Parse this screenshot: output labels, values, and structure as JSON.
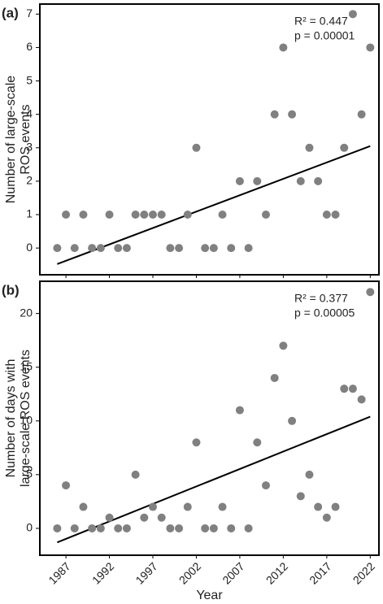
{
  "chart_data": [
    {
      "type": "scatter",
      "panel_label": "(a)",
      "ylabel": [
        "Number of large-scale",
        "ROS events"
      ],
      "annotations": [
        "R² = 0.447",
        "p = 0.00001"
      ],
      "color": "#808080",
      "x": [
        1986,
        1987,
        1988,
        1989,
        1990,
        1991,
        1992,
        1993,
        1994,
        1995,
        1996,
        1997,
        1998,
        1999,
        2000,
        2001,
        2002,
        2003,
        2004,
        2005,
        2006,
        2007,
        2008,
        2009,
        2010,
        2011,
        2012,
        2013,
        2014,
        2015,
        2016,
        2017,
        2018,
        2019,
        2020,
        2021,
        2022
      ],
      "values": [
        0,
        1,
        0,
        1,
        0,
        0,
        1,
        0,
        0,
        1,
        1,
        1,
        1,
        0,
        0,
        1,
        3,
        0,
        0,
        1,
        0,
        2,
        0,
        2,
        1,
        4,
        6,
        4,
        2,
        3,
        2,
        1,
        1,
        3,
        7,
        4,
        6
      ],
      "trend": {
        "x": [
          1986,
          2022
        ],
        "values": [
          -0.48,
          3.05
        ]
      },
      "xlim": [
        1984,
        2023
      ],
      "ylim": [
        -0.8,
        7.3
      ],
      "xticks": [
        1987,
        1992,
        1997,
        2002,
        2007,
        2012,
        2017,
        2022
      ],
      "yticks": [
        0,
        1,
        2,
        3,
        4,
        5,
        6,
        7
      ]
    },
    {
      "type": "scatter",
      "panel_label": "(b)",
      "ylabel": [
        "Number of days with",
        "large-scale ROS events"
      ],
      "xlabel": "Year",
      "annotations": [
        "R² = 0.377",
        "p = 0.00005"
      ],
      "color": "#808080",
      "x": [
        1986,
        1987,
        1988,
        1989,
        1990,
        1991,
        1992,
        1993,
        1994,
        1995,
        1996,
        1997,
        1998,
        1999,
        2000,
        2001,
        2002,
        2003,
        2004,
        2005,
        2006,
        2007,
        2008,
        2009,
        2010,
        2011,
        2012,
        2013,
        2014,
        2015,
        2016,
        2017,
        2018,
        2019,
        2020,
        2021,
        2022
      ],
      "values": [
        0,
        4,
        0,
        2,
        0,
        0,
        1,
        0,
        0,
        5,
        1,
        2,
        1,
        0,
        0,
        2,
        8,
        0,
        0,
        2,
        0,
        11,
        0,
        8,
        4,
        14,
        17,
        10,
        3,
        5,
        2,
        1,
        2,
        13,
        13,
        12,
        22
      ],
      "trend": {
        "x": [
          1986,
          2022
        ],
        "values": [
          -1.3,
          10.4
        ]
      },
      "xlim": [
        1984,
        2023
      ],
      "ylim": [
        -2.5,
        23
      ],
      "xticks": [
        1987,
        1992,
        1997,
        2002,
        2007,
        2012,
        2017,
        2022
      ],
      "yticks": [
        0,
        5,
        10,
        15,
        20
      ]
    }
  ]
}
